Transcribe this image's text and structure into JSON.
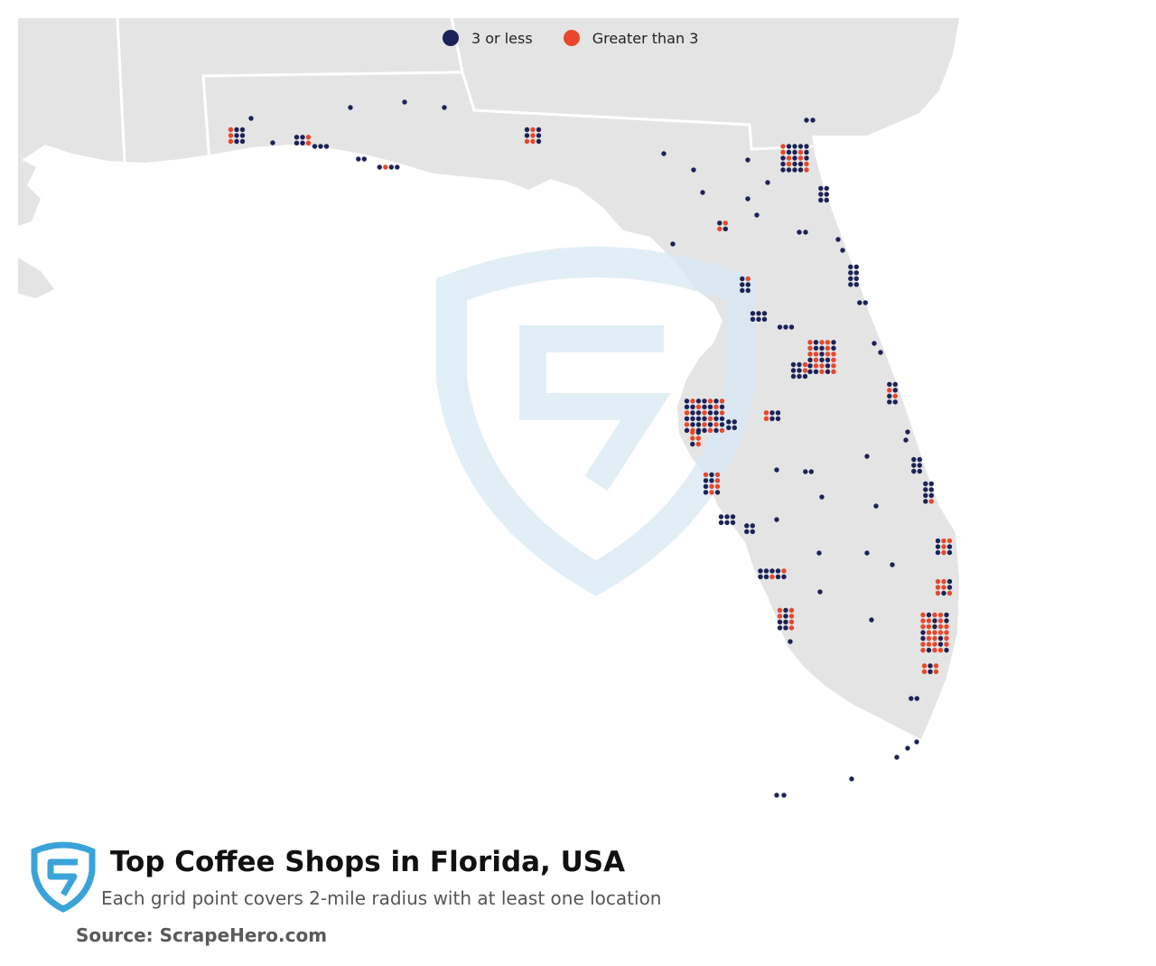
{
  "legend": {
    "items": [
      {
        "label": "3 or less",
        "color": "#1b2257"
      },
      {
        "label": "Greater than 3",
        "color": "#e8472a"
      }
    ]
  },
  "colors": {
    "land": "#e4e4e4",
    "water": "#ffffff",
    "border": "#ffffff",
    "watermark": "#d7e9f4",
    "logo": "#3aa3d9"
  },
  "footer": {
    "title": "Top Coffee Shops in Florida, USA",
    "subtitle": "Each grid point covers 2-mile radius with at least one location",
    "source": "Source: ScrapeHero.com"
  }
}
